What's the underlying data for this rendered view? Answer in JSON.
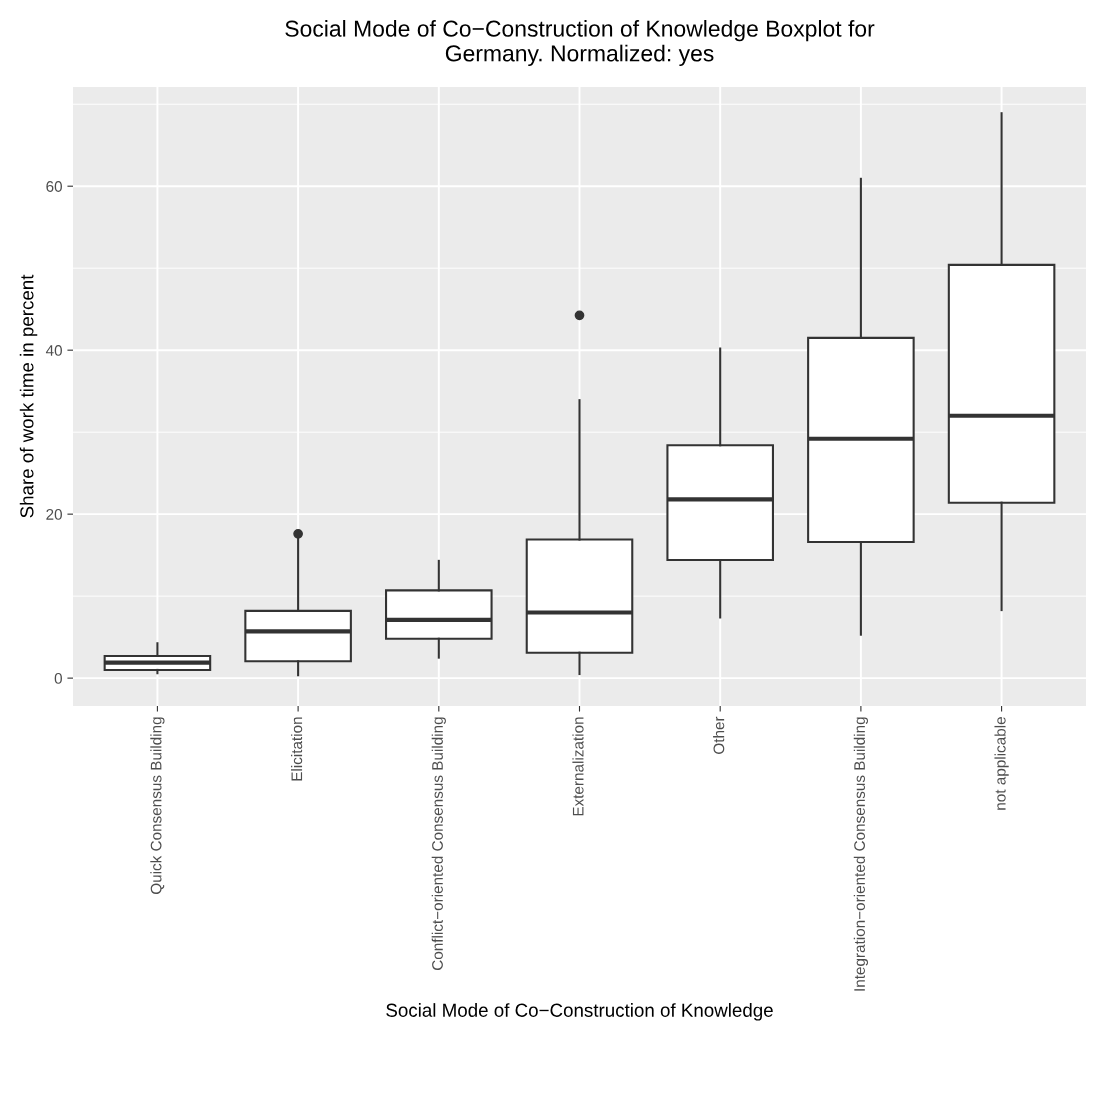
{
  "chart_data": {
    "type": "box",
    "title": "Social Mode of Co−Construction of Knowledge Boxplot for\nGermany. Normalized: yes",
    "xlabel": "Social Mode of Co−Construction of Knowledge",
    "ylabel": "Share of work time in percent",
    "categories": [
      "Quick Consensus Building",
      "Elicitation",
      "Conflict−oriented Consensus Building",
      "Externalization",
      "Other",
      "Integration−oriented Consensus Building",
      "not applicable"
    ],
    "boxes": [
      {
        "low": 0.6,
        "q1": 1.0,
        "median": 1.9,
        "q3": 2.7,
        "high": 4.25
      },
      {
        "low": 0.35,
        "q1": 2.05,
        "median": 5.7,
        "q3": 8.2,
        "high": 17.3,
        "outliers": [
          17.6
        ]
      },
      {
        "low": 2.5,
        "q1": 4.8,
        "median": 7.1,
        "q3": 10.7,
        "high": 14.3
      },
      {
        "low": 0.5,
        "q1": 3.1,
        "median": 8.0,
        "q3": 16.9,
        "high": 33.9,
        "outliers": [
          44.25
        ]
      },
      {
        "low": 7.4,
        "q1": 14.4,
        "median": 21.8,
        "q3": 28.4,
        "high": 40.2
      },
      {
        "low": 5.3,
        "q1": 16.6,
        "median": 29.2,
        "q3": 41.5,
        "high": 60.9
      },
      {
        "low": 8.3,
        "q1": 21.4,
        "median": 32.0,
        "q3": 50.4,
        "high": 68.9
      }
    ],
    "ylim": [
      -3.4,
      72.1
    ],
    "yticks": [
      0,
      20,
      40,
      60
    ],
    "grid": true
  }
}
